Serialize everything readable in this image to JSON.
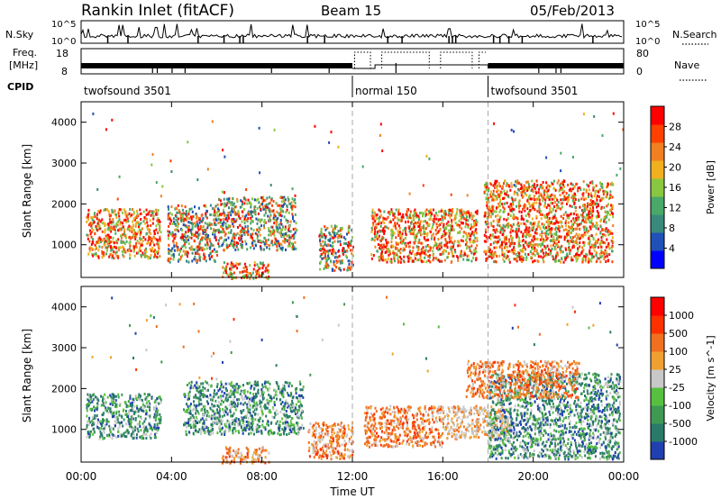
{
  "header": {
    "station": "Rankin Inlet (fitACF)",
    "beam": "Beam 15",
    "date": "05/Feb/2013"
  },
  "top_panels": {
    "nsky_label": "N.Sky",
    "nsky_ticks": [
      "10^5",
      "10^0"
    ],
    "nsky_right_ticks": [
      "10^5",
      "10^0"
    ],
    "nsearch_label": "N.Search",
    "freq_label_line1": "Freq.",
    "freq_label_line2": "[MHz]",
    "freq_ticks": [
      "18",
      "8"
    ],
    "nave_ticks": [
      "80",
      "0"
    ],
    "nave_label": "Nave",
    "cpid_label": "CPID",
    "cpid_segments": [
      {
        "label": "twofsound 3501",
        "start_hour": 0,
        "end_hour": 12
      },
      {
        "label": "normal 150",
        "start_hour": 12,
        "end_hour": 18
      },
      {
        "label": "twofsound 3501",
        "start_hour": 18,
        "end_hour": 24
      }
    ]
  },
  "chart_data": [
    {
      "type": "heatmap",
      "panel": "power",
      "ylabel": "Slant Range [km]",
      "ylim": [
        200,
        4500
      ],
      "xlim": [
        0,
        24
      ],
      "ytick_labels": [
        "1000",
        "2000",
        "3000",
        "4000"
      ],
      "colorbar_label": "Power [dB]",
      "colorbar_ticks": [
        "4",
        "8",
        "12",
        "16",
        "20",
        "24",
        "28"
      ],
      "colorbar_colors": [
        "#0000ff",
        "#2050b8",
        "#3a8a7c",
        "#4aa868",
        "#88c840",
        "#f0b020",
        "#f08020",
        "#ff4000",
        "#ff0000"
      ],
      "scatter_regions": [
        {
          "x": [
            0.2,
            3.5
          ],
          "y": [
            700,
            1900
          ],
          "mix": "hot"
        },
        {
          "x": [
            3.8,
            6.0
          ],
          "y": [
            600,
            2000
          ],
          "mix": "mid"
        },
        {
          "x": [
            6.0,
            9.5
          ],
          "y": [
            900,
            2200
          ],
          "mix": "mid"
        },
        {
          "x": [
            6.2,
            8.3
          ],
          "y": [
            200,
            600
          ],
          "mix": "hot"
        },
        {
          "x": [
            10.5,
            12.0
          ],
          "y": [
            400,
            1500
          ],
          "mix": "mid"
        },
        {
          "x": [
            12.8,
            17.5
          ],
          "y": [
            600,
            1900
          ],
          "mix": "hot"
        },
        {
          "x": [
            17.8,
            23.5
          ],
          "y": [
            600,
            2600
          ],
          "mix": "hot"
        }
      ]
    },
    {
      "type": "heatmap",
      "panel": "velocity",
      "ylabel": "Slant Range [km]",
      "ylim": [
        200,
        4500
      ],
      "xlim": [
        0,
        24
      ],
      "ytick_labels": [
        "1000",
        "2000",
        "3000",
        "4000"
      ],
      "colorbar_label": "Velocity [m s^-1]",
      "colorbar_ticks": [
        "1000",
        "500",
        "100",
        "25",
        "-25",
        "-100",
        "-500",
        "-1000"
      ],
      "colorbar_colors": [
        "#2040b0",
        "#2a7a6a",
        "#3e9a52",
        "#58c040",
        "#c8c8c8",
        "#f0a030",
        "#f07020",
        "#ff3000",
        "#ff0000"
      ],
      "scatter_regions": [
        {
          "x": [
            0.2,
            3.5
          ],
          "y": [
            800,
            1900
          ],
          "mix": "green"
        },
        {
          "x": [
            4.5,
            9.8
          ],
          "y": [
            900,
            2200
          ],
          "mix": "green"
        },
        {
          "x": [
            6.2,
            8.3
          ],
          "y": [
            200,
            600
          ],
          "mix": "orange"
        },
        {
          "x": [
            10.0,
            12.0
          ],
          "y": [
            300,
            1200
          ],
          "mix": "orange"
        },
        {
          "x": [
            12.5,
            16.0
          ],
          "y": [
            600,
            1600
          ],
          "mix": "orange"
        },
        {
          "x": [
            16.0,
            19.0
          ],
          "y": [
            800,
            1600
          ],
          "mix": "gray"
        },
        {
          "x": [
            18.0,
            23.8
          ],
          "y": [
            300,
            2400
          ],
          "mix": "green"
        },
        {
          "x": [
            17.0,
            22.0
          ],
          "y": [
            1800,
            2700
          ],
          "mix": "orange"
        }
      ]
    }
  ],
  "xaxis": {
    "label": "Time UT",
    "tick_labels": [
      "00:00",
      "04:00",
      "08:00",
      "12:00",
      "16:00",
      "20:00",
      "00:00"
    ],
    "tick_hours": [
      0,
      4,
      8,
      12,
      16,
      20,
      24
    ],
    "mode_change_hours": [
      12,
      18
    ]
  }
}
